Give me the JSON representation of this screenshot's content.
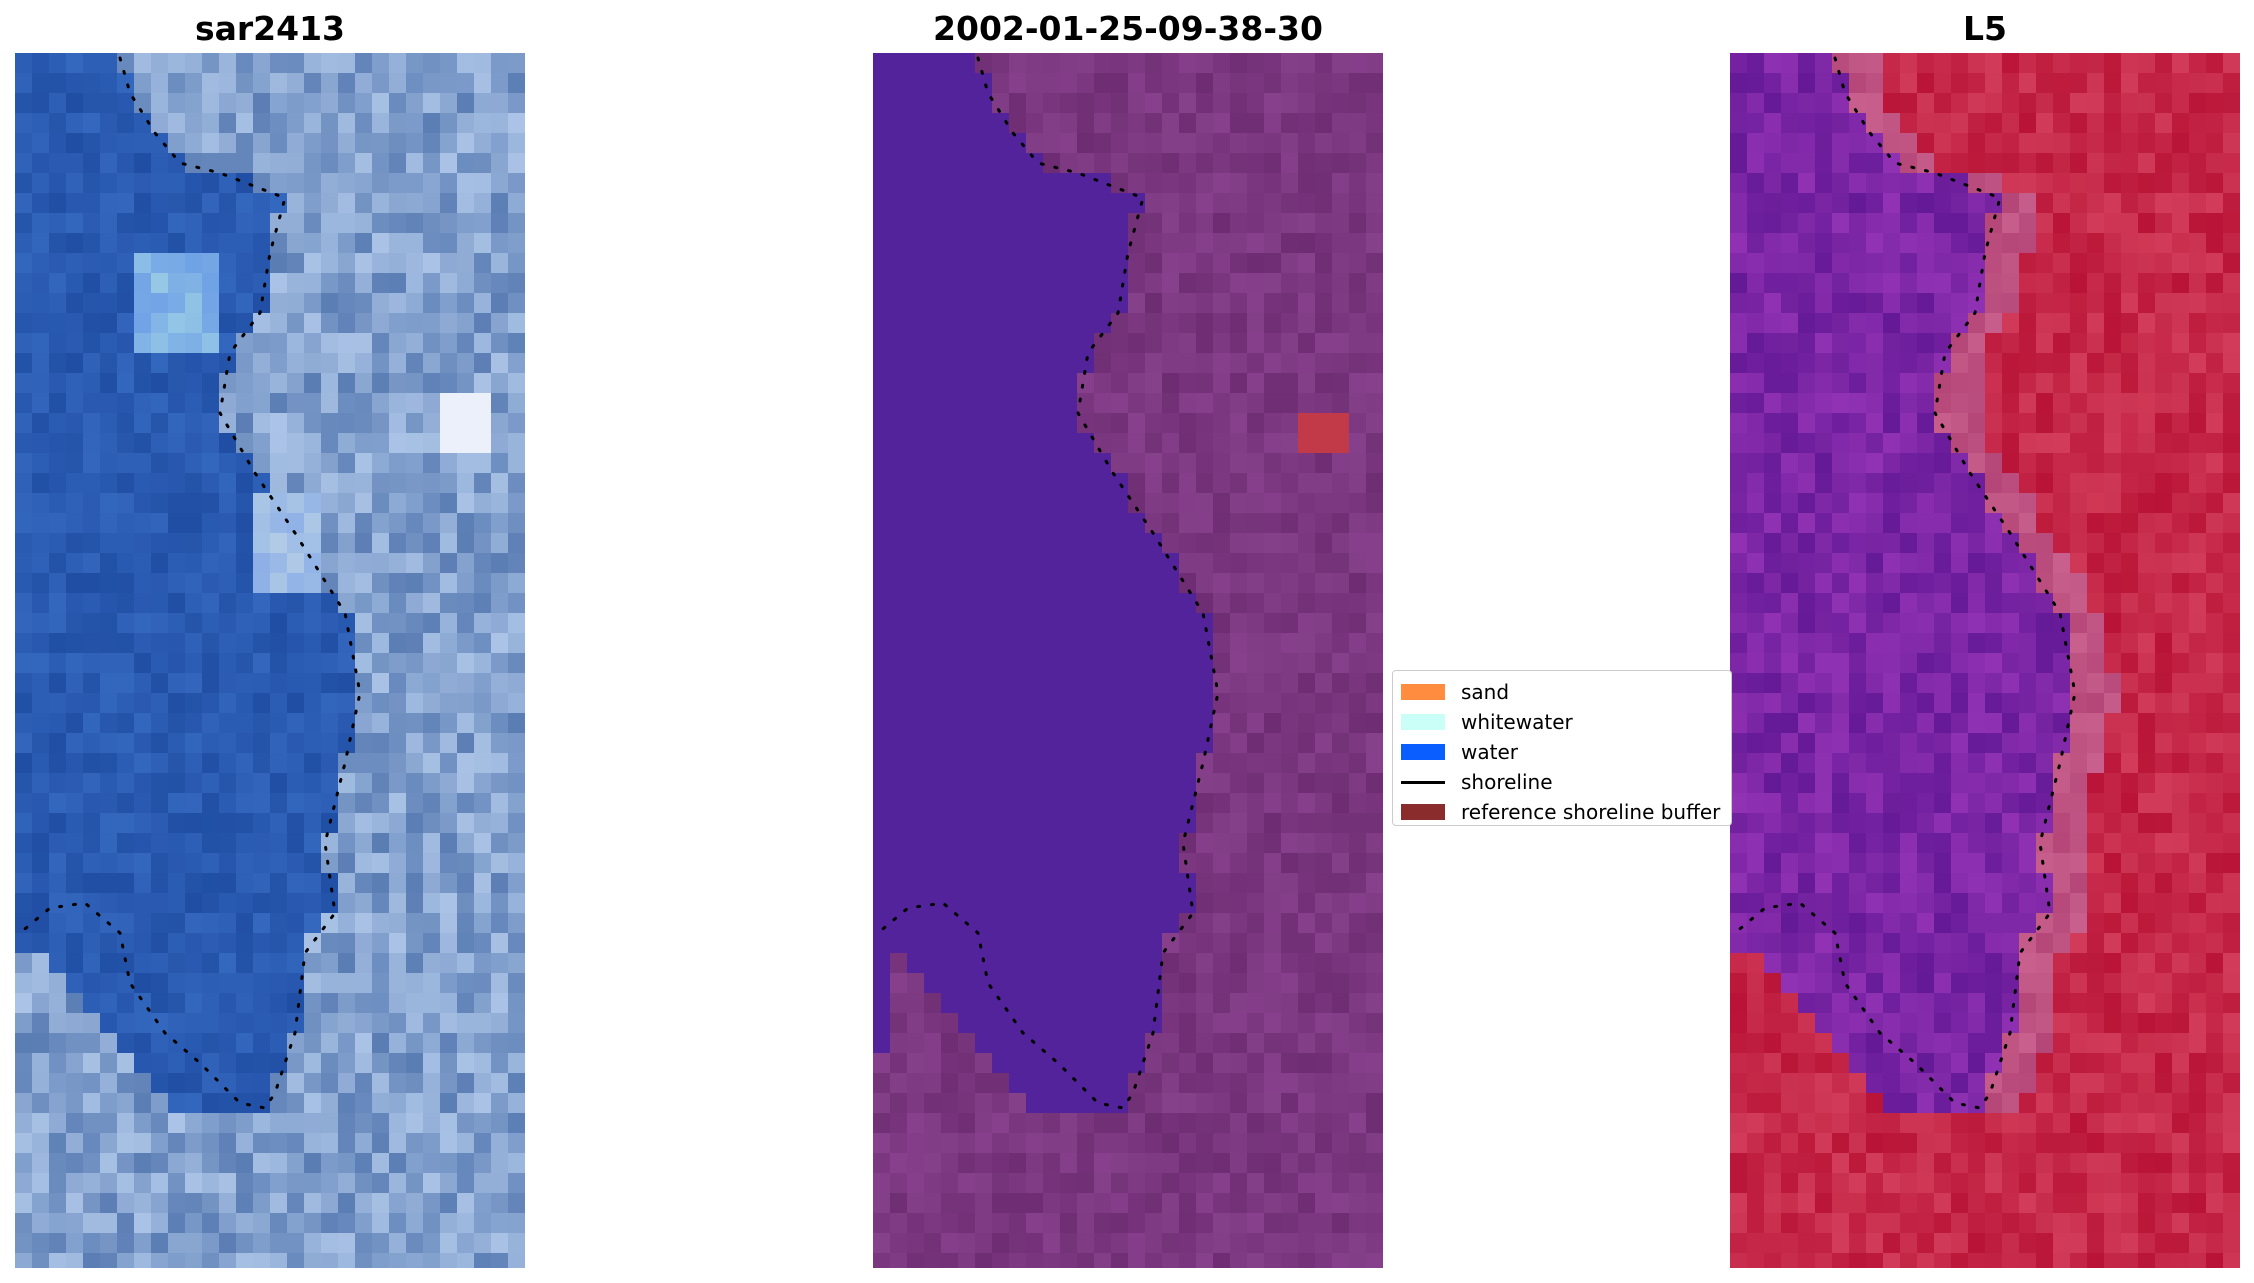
{
  "panels": [
    {
      "title": "sar2413",
      "scheme": "rgb"
    },
    {
      "title": "2002-01-25-09-38-30",
      "scheme": "class"
    },
    {
      "title": "L5",
      "scheme": "index"
    }
  ],
  "legend": {
    "items": [
      {
        "label": "sand",
        "color": "#ff8c3f",
        "kind": "patch"
      },
      {
        "label": "whitewater",
        "color": "#c9fff7",
        "kind": "patch"
      },
      {
        "label": "water",
        "color": "#0a5eff",
        "kind": "patch"
      },
      {
        "label": "shoreline",
        "color": "#000000",
        "kind": "line"
      },
      {
        "label": "reference shoreline buffer",
        "color": "#8b2c2c",
        "kind": "patch"
      }
    ]
  },
  "colors": {
    "water_class": "#52239a",
    "land_class": "#7e3b82",
    "red_highlight": "#c23a48",
    "index_low": "#5a0aa6",
    "index_high": "#c3002f",
    "rgb_water": "#2454ae",
    "rgb_land": "#6e8cbf",
    "shoreline_dots": "#000000"
  }
}
